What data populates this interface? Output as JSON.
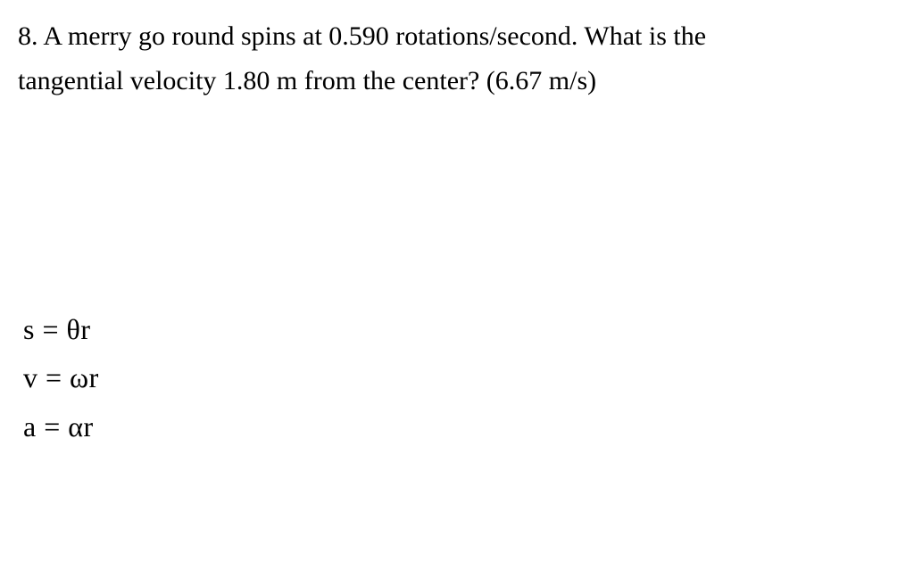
{
  "problem": {
    "line1": "8. A merry go round spins at 0.590 rotations/second.  What is the",
    "line2": "tangential velocity 1.80 m from the center? (6.67 m/s)",
    "text_color": "#000000",
    "font_size": 30,
    "background_color": "#ffffff"
  },
  "equations": {
    "eq1_left": "s = ",
    "eq1_symbol": "θ",
    "eq1_right": "r",
    "eq2_left": "v = ",
    "eq2_symbol": "ω",
    "eq2_right": "r",
    "eq3_left": "a = ",
    "eq3_symbol": "α",
    "eq3_right": "r",
    "font_size": 32,
    "text_color": "#000000"
  }
}
